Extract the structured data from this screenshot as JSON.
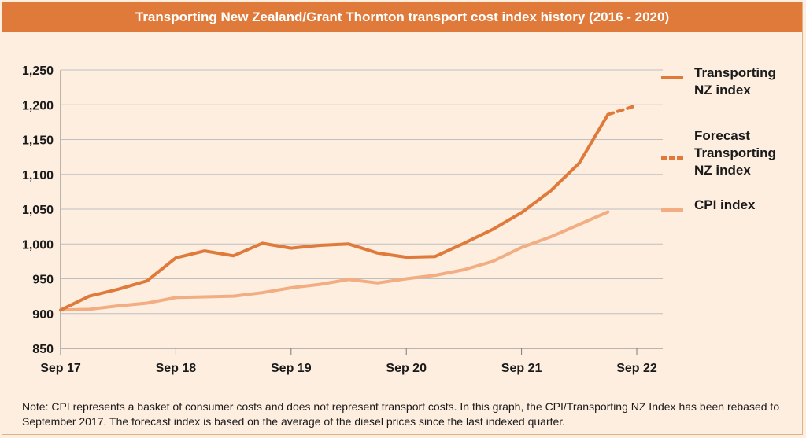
{
  "title": "Transporting New Zealand/Grant Thornton transport cost index history (2016 - 2020)",
  "note": "Note: CPI represents a basket of consumer costs and does not represent transport costs. In this graph, the CPI/Transporting NZ Index has been rebased to September 2017. The forecast index is based on the average of the diesel prices since the last indexed quarter.",
  "colors": {
    "transport": "#e07a3a",
    "forecast": "#e07a3a",
    "cpi": "#f2ad82",
    "grid": "#bfbfbf",
    "axis": "#7a7a7a"
  },
  "chart_data": {
    "type": "line",
    "title": "Transporting New Zealand/Grant Thornton transport cost index history (2016 - 2020)",
    "xlabel": "",
    "ylabel": "",
    "x_tick_labels": [
      "Sep 17",
      "Sep 18",
      "Sep 19",
      "Sep 20",
      "Sep 21",
      "Sep 22"
    ],
    "y_tick_labels": [
      "1,250",
      "1,200",
      "1,150",
      "1,100",
      "1,050",
      "1,000",
      "950",
      "900",
      "850"
    ],
    "ylim": [
      850,
      1250
    ],
    "grid": true,
    "legend_position": "right",
    "x": [
      0,
      1,
      2,
      3,
      4,
      5,
      6,
      7,
      8,
      9,
      10,
      11,
      12,
      13,
      14,
      15,
      16,
      17,
      18,
      19,
      20
    ],
    "series": [
      {
        "name": "Transporting NZ index",
        "style": "solid",
        "x": [
          0,
          1,
          2,
          3,
          4,
          5,
          6,
          7,
          8,
          9,
          10,
          11,
          12,
          13,
          14,
          15,
          16,
          17,
          18,
          19
        ],
        "values": [
          905,
          925,
          935,
          947,
          980,
          990,
          983,
          1001,
          994,
          998,
          1000,
          987,
          981,
          982,
          1001,
          1021,
          1045,
          1076,
          1116,
          1186
        ]
      },
      {
        "name": "Forecast Transporting NZ index",
        "style": "dashed",
        "x": [
          19,
          20
        ],
        "values": [
          1186,
          1199
        ]
      },
      {
        "name": "CPI index",
        "style": "solid",
        "x": [
          0,
          1,
          2,
          3,
          4,
          5,
          6,
          7,
          8,
          9,
          10,
          11,
          12,
          13,
          14,
          15,
          16,
          17,
          18,
          19
        ],
        "values": [
          905,
          906,
          911,
          915,
          923,
          924,
          925,
          930,
          937,
          942,
          949,
          944,
          950,
          955,
          963,
          975,
          995,
          1010,
          1028,
          1046
        ]
      }
    ]
  },
  "legend": [
    {
      "label": "Transporting\nNZ index",
      "series": "Transporting NZ index"
    },
    {
      "label": "Forecast\nTransporting\nNZ index",
      "series": "Forecast Transporting NZ index"
    },
    {
      "label": "CPI index",
      "series": "CPI index"
    }
  ]
}
